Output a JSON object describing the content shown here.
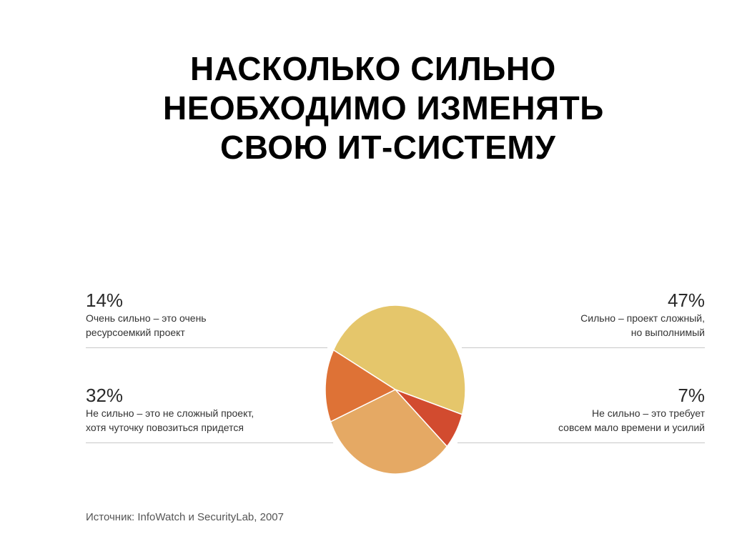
{
  "title_lines": [
    "НАСКОЛЬКО СИЛЬНО",
    "НЕОБХОДИМО ИЗМЕНЯТЬ",
    "СВОЮ ИТ-СИСТЕМУ"
  ],
  "chart_data": {
    "type": "pie",
    "title": "НАСКОЛЬКО СИЛЬНО НЕОБХОДИМО ИЗМЕНЯТЬ СВОЮ ИТ-СИСТЕМУ",
    "slices": [
      {
        "value": 47,
        "label": "47%",
        "description": [
          "Сильно – проект сложный,",
          "но выполнимый"
        ],
        "color": "#E5C66B"
      },
      {
        "value": 7,
        "label": "7%",
        "description": [
          "Не сильно – это требует",
          "совсем мало времени и усилий"
        ],
        "color": "#D24B2F"
      },
      {
        "value": 32,
        "label": "32%",
        "description": [
          "Не сильно – это не сложный проект,",
          "хотя чуточку повозиться придется"
        ],
        "color": "#E5A964"
      },
      {
        "value": 14,
        "label": "14%",
        "description": [
          "Очень сильно – это очень",
          "ресурсоемкий проект"
        ],
        "color": "#DE7236"
      }
    ],
    "legend": "labels-around"
  },
  "source": "Источник: InfoWatch и SecurityLab, 2007"
}
